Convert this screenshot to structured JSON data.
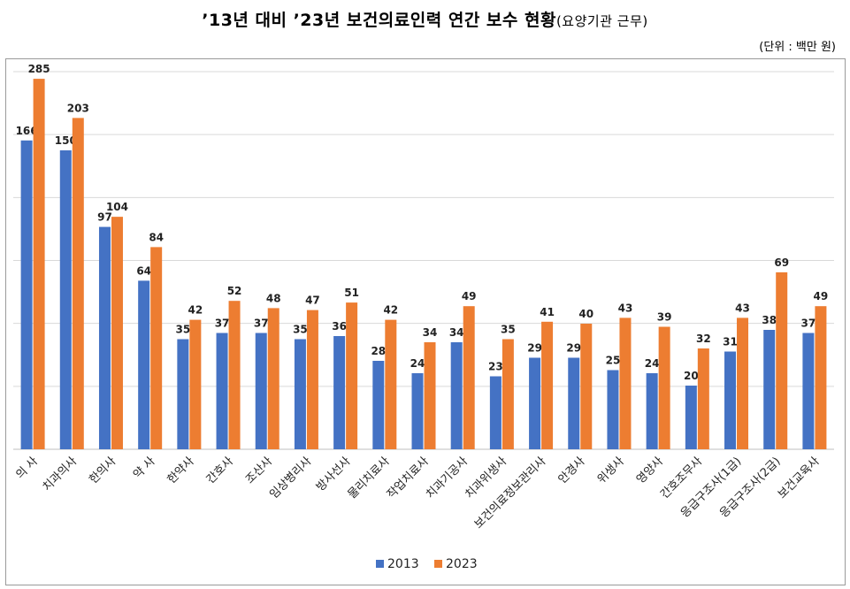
{
  "header": {
    "title_main": "’13년 대비 ’23년 보건의료인력 연간 보수 현황",
    "title_sub": "(요양기관 근무)",
    "unit": "(단위 : 백만 원)"
  },
  "chart_data": {
    "type": "bar",
    "title": "’13년 대비 ’23년 보건의료인력 연간 보수 현황(요양기관 근무)",
    "unit": "(단위 : 백만 원)",
    "categories": [
      "의 사",
      "치과의사",
      "한의사",
      "약 사",
      "한약사",
      "간호사",
      "조산사",
      "임상병리사",
      "방사선사",
      "물리치료사",
      "작업치료사",
      "치과기공사",
      "치과위생사",
      "보건의료정보관리사",
      "안경사",
      "위생사",
      "영양사",
      "간호조무사",
      "응급구조사(1급)",
      "응급구조사(2급)",
      "보건교육사"
    ],
    "series": [
      {
        "name": "2013",
        "color": "#4472C4",
        "values": [
          166,
          150,
          97,
          64,
          35,
          37,
          37,
          35,
          36,
          28,
          24,
          34,
          23,
          29,
          29,
          25,
          24,
          20,
          31,
          38,
          37
        ]
      },
      {
        "name": "2023",
        "color": "#ED7D31",
        "values": [
          285,
          203,
          104,
          84,
          42,
          52,
          48,
          47,
          51,
          42,
          34,
          49,
          35,
          41,
          40,
          43,
          39,
          32,
          43,
          69,
          49
        ]
      }
    ],
    "legend": "bottom",
    "grid": true,
    "scale": "symlog-like (compressed upper range)"
  }
}
